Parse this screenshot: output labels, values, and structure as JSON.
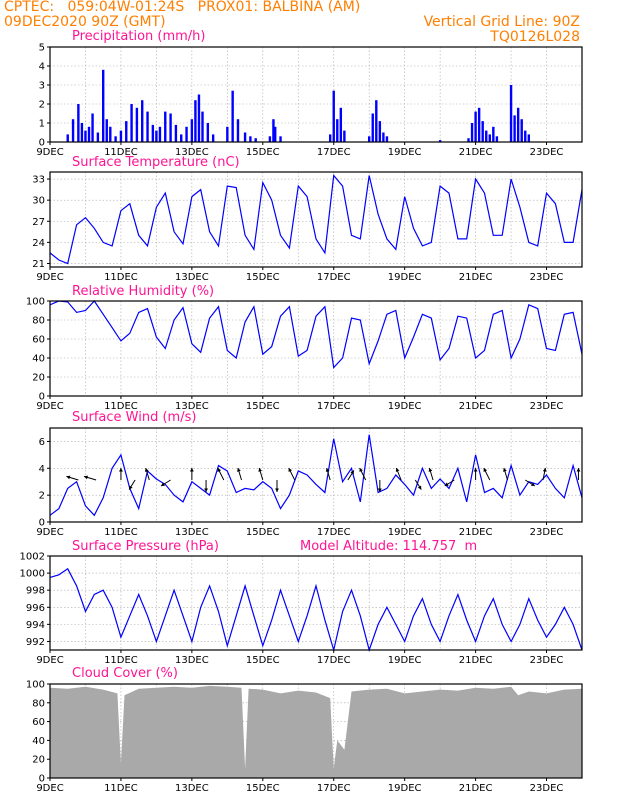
{
  "header": {
    "line1_left": "CPTEC:   059:04W-01:24S   PROX01: BALBINA (AM)",
    "line2_left": "09DEC2020 90Z (GMT)",
    "line2_right": "Vertical Grid Line: 90Z",
    "line3_right": "TQ0126L028"
  },
  "x_axis": {
    "days_start": 9,
    "days_end": 24,
    "labels": [
      "9DEC",
      "11DEC",
      "13DEC",
      "15DEC",
      "17DEC",
      "19DEC",
      "21DEC",
      "23DEC"
    ],
    "label_days": [
      9,
      11,
      13,
      15,
      17,
      19,
      21,
      23
    ]
  },
  "chart_data": [
    {
      "id": "precip",
      "type": "bar",
      "title": "Precipitation (mm/h)",
      "ylim": [
        0,
        5
      ],
      "yticks": [
        0,
        1,
        2,
        3,
        4,
        5
      ],
      "color": "#0000ff",
      "x": [
        9.5,
        9.65,
        9.8,
        9.9,
        10.0,
        10.1,
        10.2,
        10.35,
        10.5,
        10.6,
        10.7,
        10.85,
        11.0,
        11.15,
        11.3,
        11.45,
        11.6,
        11.75,
        11.9,
        12.0,
        12.1,
        12.25,
        12.4,
        12.55,
        12.7,
        12.85,
        13.0,
        13.1,
        13.2,
        13.3,
        13.45,
        13.6,
        14.0,
        14.15,
        14.3,
        14.5,
        14.65,
        14.8,
        15.2,
        15.3,
        15.35,
        15.5,
        16.9,
        17.0,
        17.1,
        17.2,
        17.3,
        18.0,
        18.1,
        18.2,
        18.3,
        18.4,
        18.5,
        20.0,
        20.8,
        20.9,
        21.0,
        21.1,
        21.2,
        21.3,
        21.4,
        21.5,
        21.6,
        22.0,
        22.1,
        22.2,
        22.3,
        22.4,
        22.5
      ],
      "values": [
        0.4,
        1.2,
        2.0,
        1.0,
        0.6,
        0.8,
        1.5,
        0.5,
        3.8,
        1.2,
        0.8,
        0.3,
        0.6,
        1.1,
        2.0,
        1.8,
        2.2,
        1.6,
        0.9,
        0.6,
        0.8,
        1.6,
        1.5,
        0.9,
        0.4,
        0.8,
        1.2,
        2.2,
        2.5,
        1.6,
        1.0,
        0.4,
        0.8,
        2.7,
        1.2,
        0.5,
        0.3,
        0.2,
        0.3,
        1.2,
        0.8,
        0.3,
        0.4,
        2.7,
        1.2,
        1.8,
        0.6,
        0.3,
        1.5,
        2.2,
        1.1,
        0.5,
        0.3,
        0.1,
        0.2,
        1.0,
        1.6,
        1.8,
        1.1,
        0.6,
        0.4,
        0.8,
        0.3,
        3.0,
        1.4,
        1.8,
        1.2,
        0.6,
        0.4
      ]
    },
    {
      "id": "temp",
      "type": "line",
      "title": "Surface Temperature (nC)",
      "ylim": [
        20.5,
        34
      ],
      "yticks": [
        21,
        24,
        27,
        30,
        33
      ],
      "color": "#0000ff",
      "x": [
        9.0,
        9.25,
        9.5,
        9.75,
        10.0,
        10.25,
        10.5,
        10.75,
        11.0,
        11.25,
        11.5,
        11.75,
        12.0,
        12.25,
        12.5,
        12.75,
        13.0,
        13.25,
        13.5,
        13.75,
        14.0,
        14.25,
        14.5,
        14.75,
        15.0,
        15.25,
        15.5,
        15.75,
        16.0,
        16.25,
        16.5,
        16.75,
        17.0,
        17.25,
        17.5,
        17.75,
        18.0,
        18.25,
        18.5,
        18.75,
        19.0,
        19.25,
        19.5,
        19.75,
        20.0,
        20.25,
        20.5,
        20.75,
        21.0,
        21.25,
        21.5,
        21.75,
        22.0,
        22.25,
        22.5,
        22.75,
        23.0,
        23.25,
        23.5,
        23.75,
        24.0
      ],
      "values": [
        22.5,
        21.5,
        21.0,
        26.5,
        27.5,
        26.0,
        24.0,
        23.5,
        28.5,
        29.5,
        25.0,
        23.5,
        29.0,
        31.0,
        25.5,
        23.8,
        30.5,
        31.5,
        25.5,
        23.5,
        32.0,
        31.8,
        25.0,
        23.0,
        32.5,
        30.0,
        25.0,
        23.2,
        32.0,
        30.5,
        24.5,
        22.5,
        33.5,
        32.0,
        25.0,
        24.5,
        33.5,
        28.0,
        24.5,
        23.0,
        30.5,
        26.0,
        23.5,
        24.0,
        32.0,
        31.0,
        24.5,
        24.5,
        33.0,
        31.0,
        25.0,
        25.0,
        33.0,
        29.0,
        24.0,
        23.5,
        31.0,
        29.5,
        24.0,
        24.0,
        31.5
      ]
    },
    {
      "id": "rh",
      "type": "line",
      "title": "Relative Humidity (%)",
      "ylim": [
        0,
        100
      ],
      "yticks": [
        0,
        20,
        40,
        60,
        80,
        100
      ],
      "color": "#0000ff",
      "x": [
        9.0,
        9.25,
        9.5,
        9.75,
        10.0,
        10.25,
        10.5,
        10.75,
        11.0,
        11.25,
        11.5,
        11.75,
        12.0,
        12.25,
        12.5,
        12.75,
        13.0,
        13.25,
        13.5,
        13.75,
        14.0,
        14.25,
        14.5,
        14.75,
        15.0,
        15.25,
        15.5,
        15.75,
        16.0,
        16.25,
        16.5,
        16.75,
        17.0,
        17.25,
        17.5,
        17.75,
        18.0,
        18.25,
        18.5,
        18.75,
        19.0,
        19.25,
        19.5,
        19.75,
        20.0,
        20.25,
        20.5,
        20.75,
        21.0,
        21.25,
        21.5,
        21.75,
        22.0,
        22.25,
        22.5,
        22.75,
        23.0,
        23.25,
        23.5,
        23.75,
        24.0
      ],
      "values": [
        96,
        100,
        99,
        88,
        90,
        100,
        86,
        72,
        58,
        66,
        88,
        92,
        62,
        50,
        80,
        93,
        55,
        46,
        82,
        94,
        48,
        40,
        78,
        94,
        44,
        52,
        84,
        94,
        42,
        48,
        84,
        94,
        30,
        40,
        82,
        80,
        34,
        58,
        86,
        90,
        40,
        62,
        86,
        82,
        38,
        50,
        84,
        82,
        40,
        48,
        86,
        90,
        40,
        60,
        96,
        92,
        50,
        48,
        86,
        88,
        44
      ]
    },
    {
      "id": "wind",
      "type": "line",
      "title": "Surface Wind (m/s)",
      "ylim": [
        0,
        7
      ],
      "yticks": [
        0,
        2,
        4,
        6
      ],
      "color": "#0000ff",
      "x": [
        9.0,
        9.25,
        9.5,
        9.75,
        10.0,
        10.25,
        10.5,
        10.75,
        11.0,
        11.25,
        11.5,
        11.75,
        12.0,
        12.25,
        12.5,
        12.75,
        13.0,
        13.25,
        13.5,
        13.75,
        14.0,
        14.25,
        14.5,
        14.75,
        15.0,
        15.25,
        15.5,
        15.75,
        16.0,
        16.25,
        16.5,
        16.75,
        17.0,
        17.25,
        17.5,
        17.75,
        18.0,
        18.25,
        18.5,
        18.75,
        19.0,
        19.25,
        19.5,
        19.75,
        20.0,
        20.25,
        20.5,
        20.75,
        21.0,
        21.25,
        21.5,
        21.75,
        22.0,
        22.25,
        22.5,
        22.75,
        23.0,
        23.25,
        23.5,
        23.75,
        24.0
      ],
      "values": [
        0.5,
        1.0,
        2.5,
        3.0,
        1.2,
        0.5,
        1.8,
        4.0,
        5.0,
        2.5,
        1.0,
        3.8,
        3.2,
        2.8,
        2.0,
        1.5,
        3.0,
        2.5,
        2.0,
        4.2,
        3.8,
        2.2,
        2.5,
        2.4,
        3.0,
        2.5,
        1.0,
        2.0,
        3.8,
        3.5,
        2.8,
        2.2,
        6.2,
        3.0,
        4.0,
        1.5,
        6.5,
        2.2,
        2.5,
        3.5,
        2.8,
        2.0,
        4.0,
        2.5,
        3.2,
        2.5,
        4.0,
        1.5,
        5.0,
        2.2,
        2.5,
        1.8,
        4.2,
        2.0,
        3.0,
        2.8,
        3.5,
        2.5,
        1.8,
        4.2,
        1.8
      ],
      "arrows": [
        {
          "x": 9.8,
          "dx": -1,
          "dy": 0.3
        },
        {
          "x": 10.3,
          "dx": -1,
          "dy": 0.3
        },
        {
          "x": 11.0,
          "dx": 0,
          "dy": 1
        },
        {
          "x": 11.4,
          "dx": -0.5,
          "dy": -0.8
        },
        {
          "x": 11.8,
          "dx": -0.3,
          "dy": 1
        },
        {
          "x": 12.4,
          "dx": -0.8,
          "dy": -0.5
        },
        {
          "x": 13.0,
          "dx": 0,
          "dy": 1
        },
        {
          "x": 13.4,
          "dx": 0,
          "dy": -1
        },
        {
          "x": 13.9,
          "dx": -0.5,
          "dy": 1
        },
        {
          "x": 14.4,
          "dx": -0.3,
          "dy": 1
        },
        {
          "x": 15.0,
          "dx": -0.3,
          "dy": 1
        },
        {
          "x": 15.4,
          "dx": 0,
          "dy": -1
        },
        {
          "x": 15.9,
          "dx": -0.5,
          "dy": 1
        },
        {
          "x": 16.9,
          "dx": -0.3,
          "dy": 1
        },
        {
          "x": 17.4,
          "dx": 0.5,
          "dy": 0.8
        },
        {
          "x": 17.9,
          "dx": -0.5,
          "dy": 1
        },
        {
          "x": 18.3,
          "dx": 0,
          "dy": -1
        },
        {
          "x": 18.9,
          "dx": -0.4,
          "dy": 1
        },
        {
          "x": 19.3,
          "dx": 0.5,
          "dy": -0.8
        },
        {
          "x": 19.8,
          "dx": -0.3,
          "dy": 1
        },
        {
          "x": 20.4,
          "dx": -0.8,
          "dy": -0.5
        },
        {
          "x": 21.0,
          "dx": 0,
          "dy": 1
        },
        {
          "x": 21.4,
          "dx": -0.5,
          "dy": 1
        },
        {
          "x": 21.9,
          "dx": -0.3,
          "dy": 1
        },
        {
          "x": 22.4,
          "dx": 0.8,
          "dy": -0.5
        },
        {
          "x": 22.9,
          "dx": 0.2,
          "dy": 1
        },
        {
          "x": 23.9,
          "dx": 0,
          "dy": 1
        }
      ]
    },
    {
      "id": "pres",
      "type": "line",
      "title": "Surface Pressure (hPa)",
      "subtitle": "Model Altitude: 114.757  m",
      "ylim": [
        991,
        1002
      ],
      "yticks": [
        992,
        994,
        996,
        998,
        1000,
        1002
      ],
      "color": "#0000ff",
      "x": [
        9.0,
        9.25,
        9.5,
        9.75,
        10.0,
        10.25,
        10.5,
        10.75,
        11.0,
        11.25,
        11.5,
        11.75,
        12.0,
        12.25,
        12.5,
        12.75,
        13.0,
        13.25,
        13.5,
        13.75,
        14.0,
        14.25,
        14.5,
        14.75,
        15.0,
        15.25,
        15.5,
        15.75,
        16.0,
        16.25,
        16.5,
        16.75,
        17.0,
        17.25,
        17.5,
        17.75,
        18.0,
        18.25,
        18.5,
        18.75,
        19.0,
        19.25,
        19.5,
        19.75,
        20.0,
        20.25,
        20.5,
        20.75,
        21.0,
        21.25,
        21.5,
        21.75,
        22.0,
        22.25,
        22.5,
        22.75,
        23.0,
        23.25,
        23.5,
        23.75,
        24.0
      ],
      "values": [
        999.5,
        999.8,
        1000.5,
        998.5,
        995.5,
        997.5,
        998.0,
        996.0,
        992.5,
        995.0,
        997.5,
        995.0,
        992.0,
        995.0,
        998.0,
        995.0,
        992.0,
        996.0,
        998.5,
        995.5,
        991.5,
        995.0,
        998.5,
        995.0,
        991.5,
        994.5,
        998.0,
        995.0,
        992.0,
        995.0,
        998.5,
        994.5,
        991.0,
        995.5,
        998.0,
        995.0,
        991.0,
        994.0,
        996.0,
        994.0,
        992.0,
        995.0,
        997.0,
        994.0,
        992.0,
        995.0,
        997.5,
        994.5,
        992.0,
        995.0,
        997.0,
        994.0,
        992.0,
        994.0,
        997.0,
        994.5,
        992.5,
        994.0,
        996.0,
        994.0,
        991.0
      ]
    },
    {
      "id": "cloud",
      "type": "area",
      "title": "Cloud Cover (%)",
      "ylim": [
        0,
        100
      ],
      "yticks": [
        0,
        20,
        40,
        60,
        80,
        100
      ],
      "color": "#a9a9a9",
      "x": [
        9.0,
        9.5,
        10.0,
        10.5,
        10.9,
        11.0,
        11.1,
        11.5,
        12.0,
        12.5,
        13.0,
        13.5,
        14.0,
        14.4,
        14.5,
        14.6,
        15.0,
        15.5,
        16.0,
        16.5,
        16.9,
        17.0,
        17.1,
        17.3,
        17.5,
        18.0,
        18.5,
        19.0,
        19.5,
        20.0,
        20.5,
        21.0,
        21.5,
        22.0,
        22.2,
        22.5,
        23.0,
        23.5,
        24.0
      ],
      "values": [
        96,
        95,
        97,
        94,
        90,
        15,
        88,
        95,
        96,
        97,
        96,
        98,
        97,
        96,
        10,
        95,
        94,
        90,
        93,
        91,
        85,
        10,
        40,
        30,
        92,
        94,
        95,
        90,
        92,
        94,
        93,
        96,
        95,
        97,
        88,
        92,
        90,
        94,
        95
      ]
    }
  ]
}
